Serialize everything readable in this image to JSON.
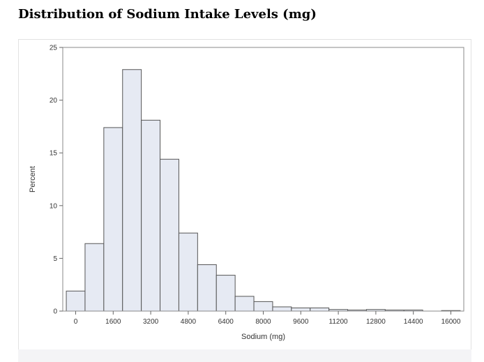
{
  "title": "Distribution of Sodium Intake Levels (mg)",
  "chart_data": {
    "type": "histogram",
    "xlabel": "Sodium (mg)",
    "ylabel": "Percent",
    "ylim": [
      0,
      25
    ],
    "yticks": [
      0,
      5,
      10,
      15,
      20,
      25
    ],
    "xticks": [
      0,
      1600,
      3200,
      4800,
      6400,
      8000,
      9600,
      11200,
      12800,
      14400,
      16000
    ],
    "bin_width": 800,
    "bin_centers": [
      0,
      800,
      1600,
      2400,
      3200,
      4000,
      4800,
      5600,
      6400,
      7200,
      8000,
      8800,
      9600,
      10400,
      11200,
      12000,
      12800,
      13600,
      14400,
      15200,
      16000
    ],
    "values": [
      1.9,
      6.4,
      17.4,
      22.9,
      18.1,
      14.4,
      7.4,
      4.4,
      3.4,
      1.4,
      0.9,
      0.4,
      0.3,
      0.3,
      0.15,
      0.1,
      0.15,
      0.1,
      0.1,
      0.0,
      0.05
    ],
    "bar_fill": "#e6eaf3",
    "bar_stroke": "#555555",
    "grid": false
  }
}
